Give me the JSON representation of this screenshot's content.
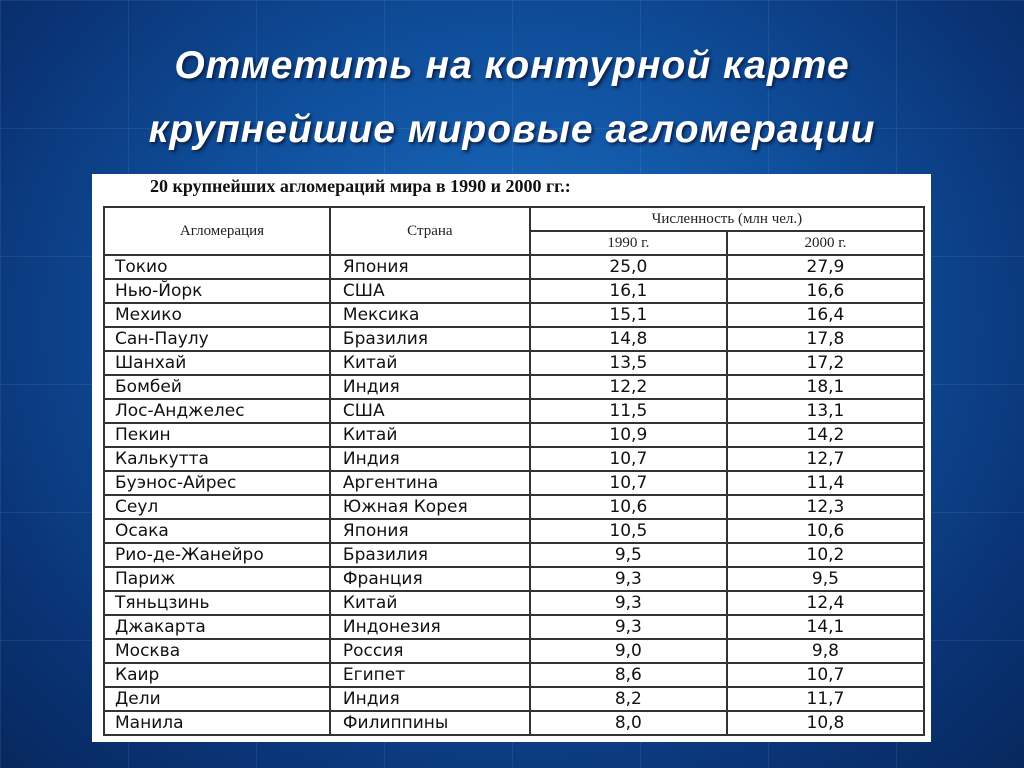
{
  "slide": {
    "title_line1": "Отметить на контурной карте",
    "title_line2": "крупнейшие мировые агломерации"
  },
  "table": {
    "caption": "20 крупнейших агломераций мира в 1990 и 2000 гг.:",
    "headers": {
      "agglomeration": "Агломерация",
      "country": "Страна",
      "population": "Численность (млн чел.)",
      "year1": "1990 г.",
      "year2": "2000 г."
    },
    "rows": [
      {
        "city": "Токио",
        "country": "Япония",
        "y1990": "25,0",
        "y2000": "27,9"
      },
      {
        "city": "Нью-Йорк",
        "country": "США",
        "y1990": "16,1",
        "y2000": "16,6"
      },
      {
        "city": "Мехико",
        "country": "Мексика",
        "y1990": "15,1",
        "y2000": "16,4"
      },
      {
        "city": "Сан-Паулу",
        "country": "Бразилия",
        "y1990": "14,8",
        "y2000": "17,8"
      },
      {
        "city": "Шанхай",
        "country": "Китай",
        "y1990": "13,5",
        "y2000": "17,2"
      },
      {
        "city": "Бомбей",
        "country": "Индия",
        "y1990": "12,2",
        "y2000": "18,1"
      },
      {
        "city": "Лос-Анджелес",
        "country": "США",
        "y1990": "11,5",
        "y2000": "13,1"
      },
      {
        "city": "Пекин",
        "country": "Китай",
        "y1990": "10,9",
        "y2000": "14,2"
      },
      {
        "city": "Калькутта",
        "country": "Индия",
        "y1990": "10,7",
        "y2000": "12,7"
      },
      {
        "city": "Буэнос-Айрес",
        "country": "Аргентина",
        "y1990": "10,7",
        "y2000": "11,4"
      },
      {
        "city": "Сеул",
        "country": "Южная Корея",
        "y1990": "10,6",
        "y2000": "12,3"
      },
      {
        "city": "Осака",
        "country": "Япония",
        "y1990": "10,5",
        "y2000": "10,6"
      },
      {
        "city": "Рио-де-Жанейро",
        "country": "Бразилия",
        "y1990": "9,5",
        "y2000": "10,2"
      },
      {
        "city": "Париж",
        "country": "Франция",
        "y1990": "9,3",
        "y2000": "9,5"
      },
      {
        "city": "Тяньцзинь",
        "country": "Китай",
        "y1990": "9,3",
        "y2000": "12,4"
      },
      {
        "city": "Джакарта",
        "country": "Индонезия",
        "y1990": "9,3",
        "y2000": "14,1"
      },
      {
        "city": "Москва",
        "country": "Россия",
        "y1990": "9,0",
        "y2000": "9,8"
      },
      {
        "city": "Каир",
        "country": "Египет",
        "y1990": "8,6",
        "y2000": "10,7"
      },
      {
        "city": "Дели",
        "country": "Индия",
        "y1990": "8,2",
        "y2000": "11,7"
      },
      {
        "city": "Манила",
        "country": "Филиппины",
        "y1990": "8,0",
        "y2000": "10,8"
      }
    ]
  }
}
